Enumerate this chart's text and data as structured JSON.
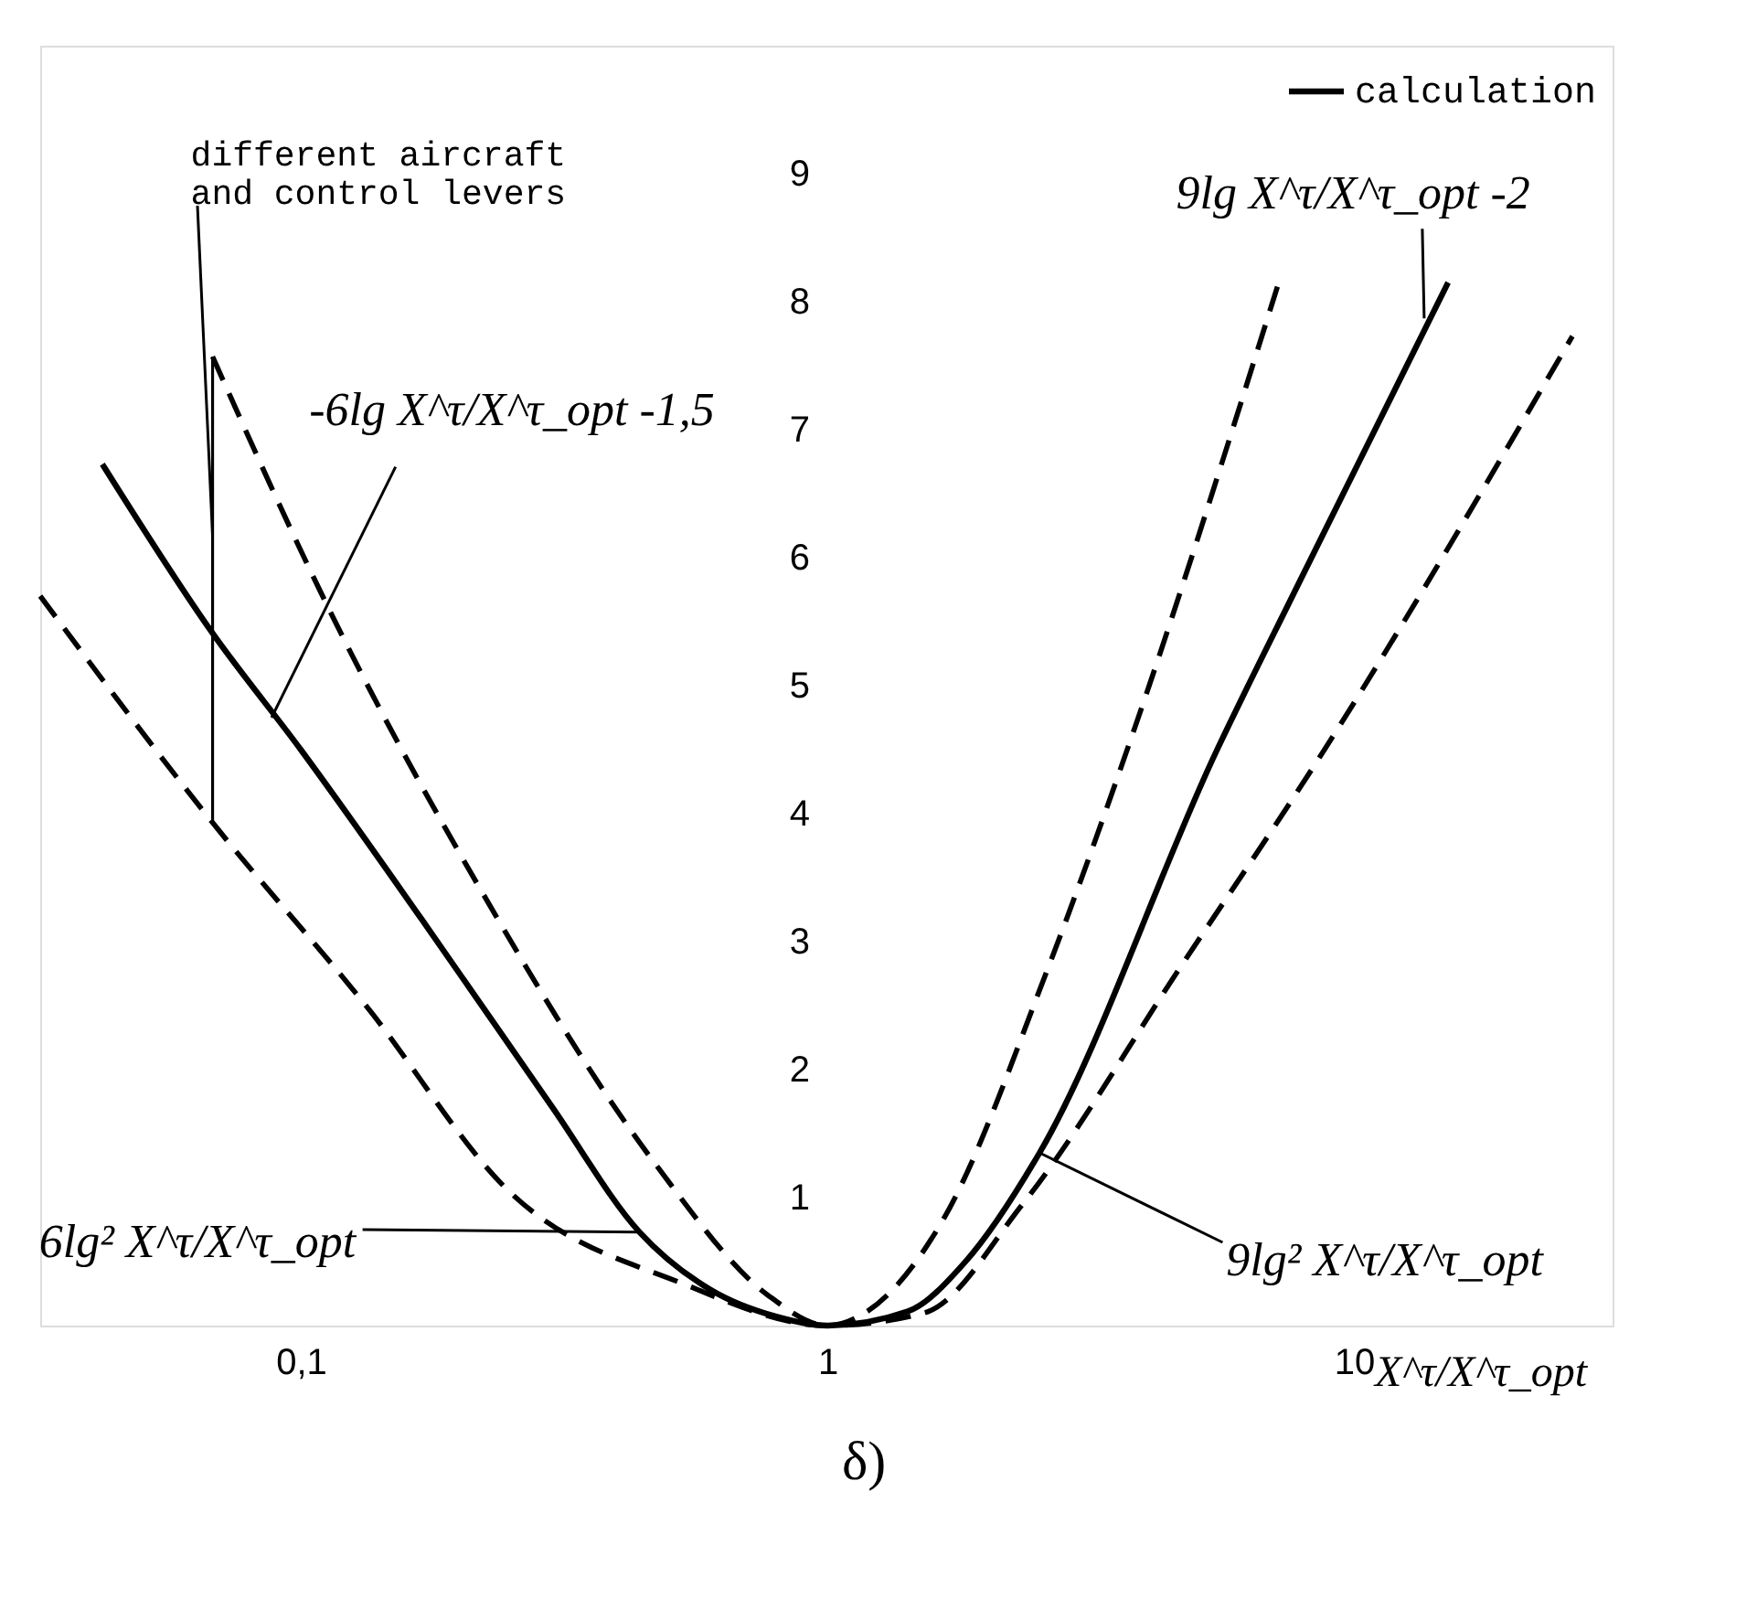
{
  "chart_data": {
    "type": "line",
    "xlabel": "X^τ/X^τ_opt",
    "log": "x",
    "xlim": [
      0.032,
      31
    ],
    "xticks": [
      {
        "value": 0.1,
        "label": "0,1"
      },
      1,
      10
    ],
    "ylim": [
      0,
      10
    ],
    "yticks": [
      1,
      2,
      3,
      4,
      5,
      6,
      7,
      8,
      9
    ],
    "grid": false,
    "legend": "top right",
    "series": [
      {
        "name": "calculation",
        "color": "#000000",
        "line_style": "solid",
        "x": [
          0.042,
          0.068,
          0.1,
          0.17,
          0.3,
          0.44,
          0.6,
          0.8,
          1,
          1.42,
          1.83,
          2.53,
          5.5,
          7.86,
          15.1
        ],
        "values": [
          6.73,
          5.41,
          4.5,
          3.17,
          1.71,
          0.73,
          0.28,
          0.07,
          0,
          0.11,
          0.5,
          1.35,
          4.5,
          5.8,
          8.15
        ]
      },
      {
        "color": "#000000",
        "line_style": "dashed",
        "x": [
          0.068,
          0.114,
          0.22,
          0.47,
          0.77,
          1,
          1.19,
          1.65,
          2.59,
          3.69,
          7.2
        ],
        "values": [
          7.57,
          5.57,
          3.4,
          1.27,
          0.24,
          0,
          0.11,
          0.81,
          2.73,
          4.47,
          8.15
        ]
      },
      {
        "color": "#000000",
        "line_style": "dashed",
        "x": [
          0.032,
          0.068,
          0.133,
          0.25,
          0.53,
          1,
          1.53,
          2.35,
          4.7,
          8.7,
          26
        ],
        "values": [
          5.7,
          3.93,
          2.5,
          1.04,
          0.33,
          0,
          0.1,
          0.95,
          2.81,
          4.47,
          7.73
        ]
      },
      {
        "type": "line",
        "color": "#000000",
        "line_style": "solid",
        "x": [
          0.068,
          0.068
        ],
        "values": [
          3.93,
          7.57
        ]
      }
    ],
    "annotations": [
      {
        "text": "different aircraft\nand control levers",
        "x": 0.068,
        "y": 6.17
      },
      {
        "text": "-6lg X^τ/X^τ_opt -1,5",
        "x": 0.088,
        "y": 4.75
      },
      {
        "text": "9lg X^τ/X^τ_opt -2",
        "x": 13.6,
        "y": 7.87
      },
      {
        "text": "6lg² X^τ/X^τ_opt",
        "x": 0.44,
        "y": 0.73
      },
      {
        "text": "9lg² X^τ/X^τ_opt",
        "x": 2.53,
        "y": 1.35
      },
      "δ)"
    ]
  }
}
